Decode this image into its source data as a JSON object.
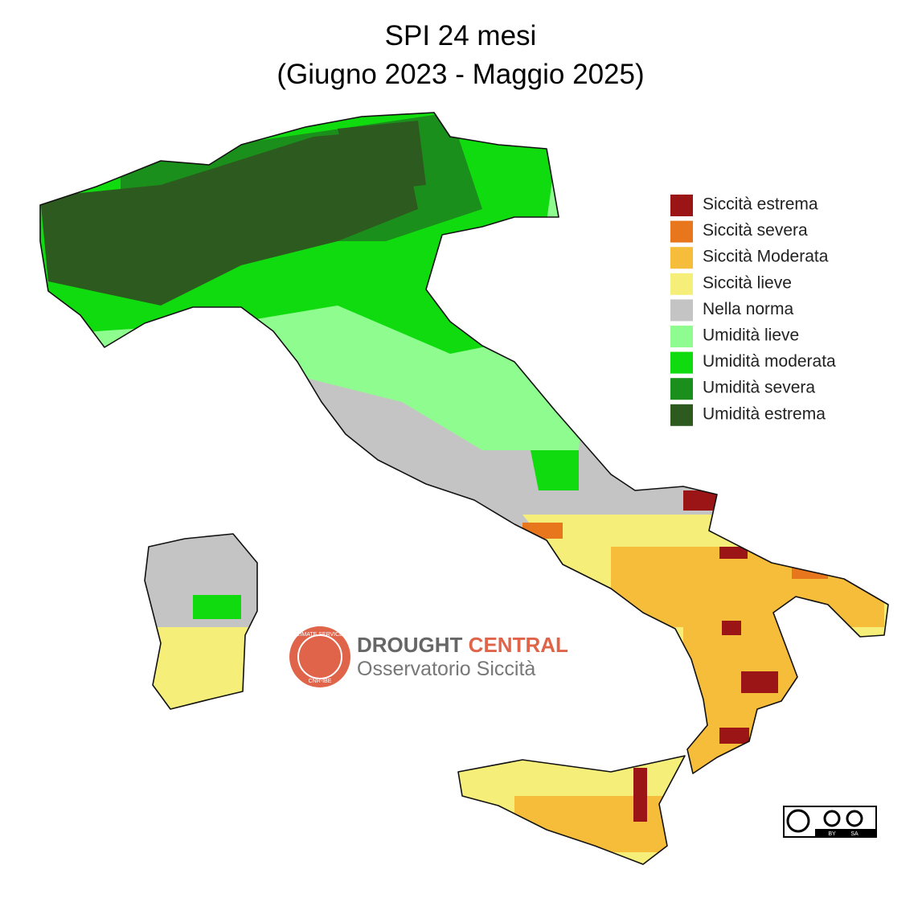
{
  "title": [
    "SPI 24 mesi",
    "(Giugno 2023 - Maggio 2025)"
  ],
  "legend": [
    {
      "label": "Siccità estrema",
      "color": "#9b1516"
    },
    {
      "label": "Siccità severa",
      "color": "#e8761c"
    },
    {
      "label": "Siccità Moderata",
      "color": "#f6bd3b"
    },
    {
      "label": "Siccità lieve",
      "color": "#f5ef7a"
    },
    {
      "label": "Nella norma",
      "color": "#c4c4c4"
    },
    {
      "label": "Umidità lieve",
      "color": "#8efc8e"
    },
    {
      "label": "Umidità moderata",
      "color": "#0fdb0f"
    },
    {
      "label": "Umidità severa",
      "color": "#1b8f1b"
    },
    {
      "label": "Umidità estrema",
      "color": "#2d5a1f"
    }
  ],
  "logo": {
    "ring_top": "CLIMATE SERVICES",
    "ring_bottom": "CNR-IBE",
    "name_first": "DROUGHT",
    "name_second": "CENTRAL",
    "subtitle": "Osservatorio Siccità"
  },
  "license": {
    "left": "BY",
    "right": "SA"
  }
}
